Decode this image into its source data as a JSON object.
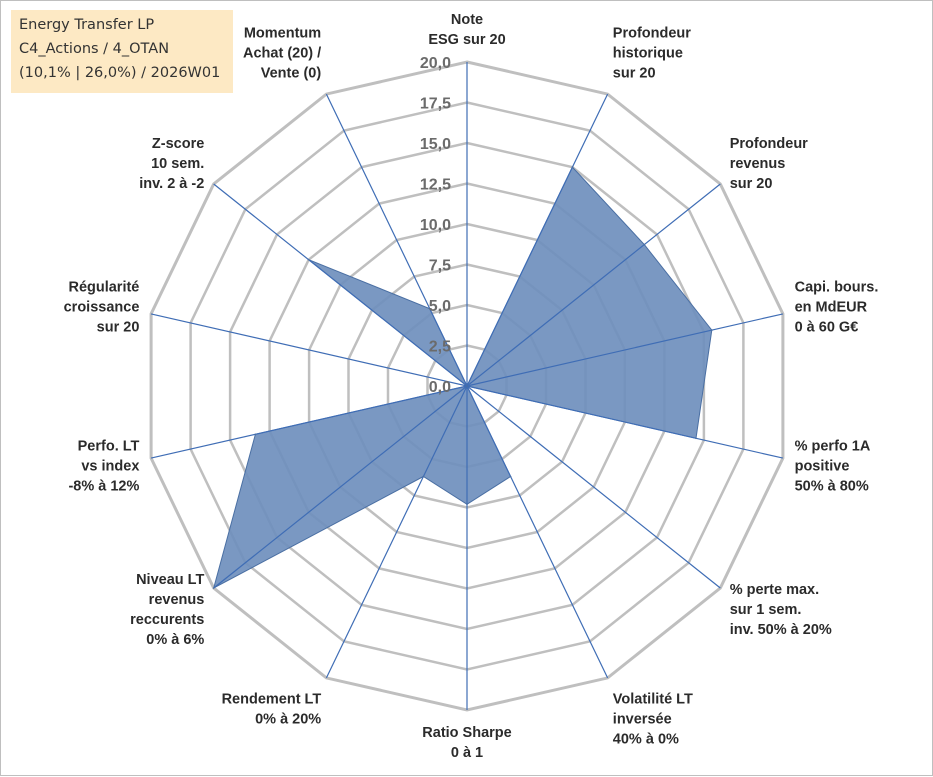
{
  "info_box": {
    "line1": "Energy Transfer LP",
    "line2": "C4_Actions / 4_OTAN",
    "line3": "(10,1% | 26,0%) / 2026W01",
    "background": "#fde9c4"
  },
  "chart_data": {
    "type": "radar",
    "title": "",
    "rlim": [
      0,
      20
    ],
    "ticks": [
      "0,0",
      "2,5",
      "5,0",
      "7,5",
      "10,0",
      "12,5",
      "15,0",
      "17,5",
      "20,0"
    ],
    "tick_values": [
      0,
      2.5,
      5,
      7.5,
      10,
      12.5,
      15,
      17.5,
      20
    ],
    "grid": true,
    "axes": [
      [
        "Note",
        "ESG sur 20"
      ],
      [
        "Profondeur",
        "historique",
        "sur 20"
      ],
      [
        "Profondeur",
        "revenus",
        "sur 20"
      ],
      [
        "Capi. bours.",
        "en MdEUR",
        "0 à 60 G€"
      ],
      [
        "% perfo 1A",
        "positive",
        "50% à 80%"
      ],
      [
        "% perte max.",
        "sur 1 sem.",
        "inv. 50% à 20%"
      ],
      [
        "Volatilité LT",
        "inversée",
        "40% à 0%"
      ],
      [
        "Ratio Sharpe",
        "0 à 1"
      ],
      [
        "Rendement LT",
        "0% à 20%"
      ],
      [
        "Niveau LT",
        "revenus",
        "reccurents",
        "0% à 6%"
      ],
      [
        "Perfo. LT",
        "vs index",
        "-8% à 12%"
      ],
      [
        "Régularité",
        "croissance",
        "sur 20"
      ],
      [
        "Z-score",
        "10 sem.",
        "inv. 2 à -2"
      ],
      [
        "Momentum",
        "Achat (20) /",
        "Vente (0)"
      ]
    ],
    "values": [
      0,
      15,
      14,
      15.5,
      14.5,
      0,
      6.2,
      7.3,
      6.2,
      20,
      13.4,
      0,
      12.5,
      5.3
    ],
    "colors": {
      "fill": "#6f8fbd",
      "fill_stroke": "#4a6fa3",
      "spoke": "#3f6db5",
      "grid": "#bfbfbf"
    }
  }
}
